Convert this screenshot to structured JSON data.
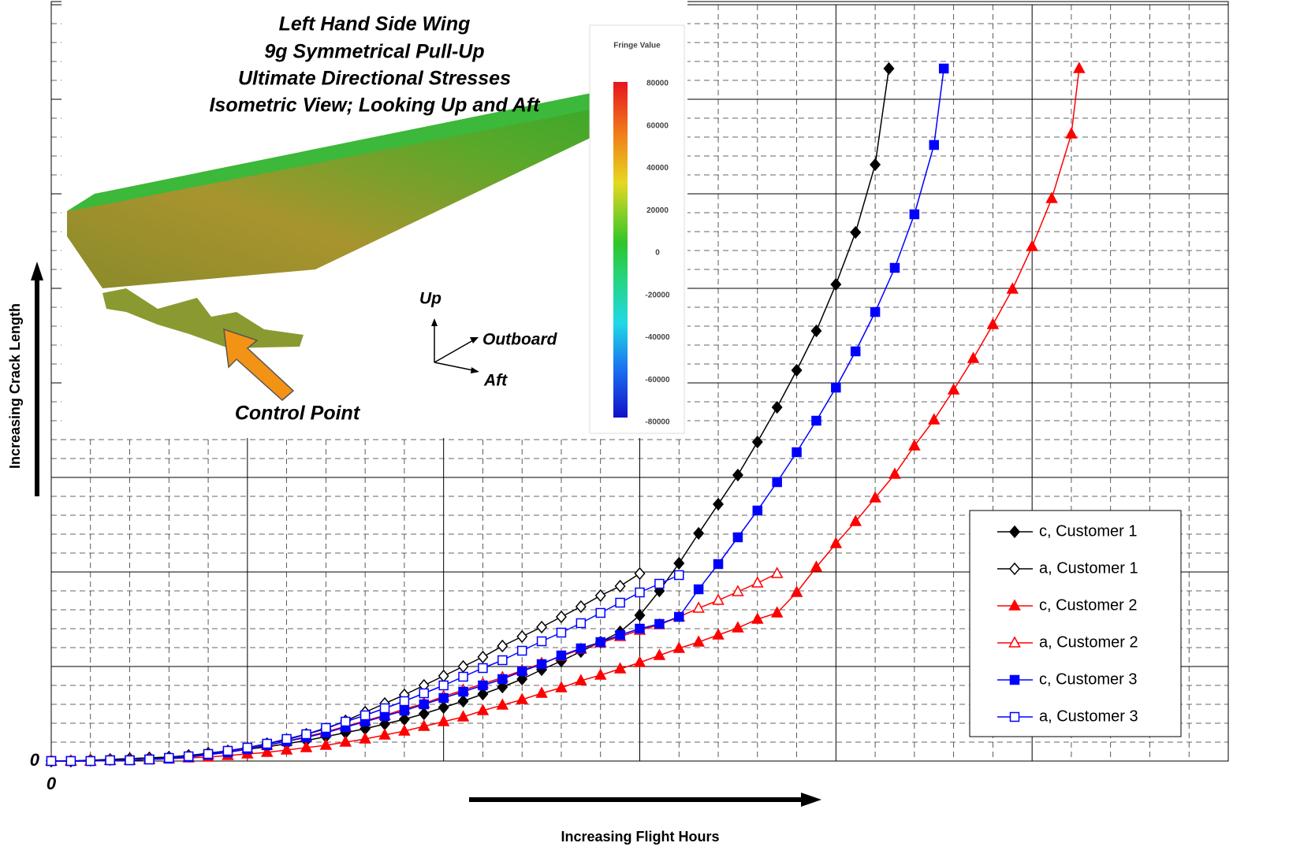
{
  "chart_data": {
    "type": "line",
    "x_axis_label": "Increasing Flight Hours",
    "y_axis_label": "Increasing Crack Length",
    "xlim": [
      0,
      30
    ],
    "ylim": [
      0,
      960
    ],
    "xticks": [
      0
    ],
    "yticks": [
      0
    ],
    "xgrid_major": 5,
    "xgrid_minor": 1,
    "ygrid_major": 120,
    "ygrid_minor": 24,
    "legend": "lower right",
    "series": [
      {
        "name": "c, Customer 1",
        "color": "#000000",
        "marker": "diamond",
        "filled": true,
        "x": [
          0,
          0.5,
          1,
          1.5,
          2,
          2.5,
          3,
          3.5,
          4,
          4.5,
          5,
          5.5,
          6,
          6.5,
          7,
          7.5,
          8,
          8.5,
          9,
          9.5,
          10,
          10.5,
          11,
          11.5,
          12,
          12.5,
          13,
          13.5,
          14,
          14.5,
          15,
          15.5,
          16,
          16.5,
          17,
          17.5,
          18,
          18.5,
          19,
          19.5,
          20,
          20.5,
          21,
          21.35
        ],
        "values": [
          0,
          0,
          1,
          2,
          3,
          4,
          5,
          7,
          9,
          12,
          15,
          18,
          22,
          26,
          31,
          36,
          41,
          47,
          53,
          60,
          68,
          76,
          85,
          94,
          104,
          116,
          127,
          139,
          151,
          164,
          185,
          216,
          251,
          289,
          326,
          363,
          405,
          449,
          496,
          546,
          605,
          671,
          757,
          879
        ]
      },
      {
        "name": "a, Customer 1",
        "color": "#000000",
        "marker": "diamond",
        "filled": false,
        "x": [
          0,
          0.5,
          1,
          1.5,
          2,
          2.5,
          3,
          3.5,
          4,
          4.5,
          5,
          5.5,
          6,
          6.5,
          7,
          7.5,
          8,
          8.5,
          9,
          9.5,
          10,
          10.5,
          11,
          11.5,
          12,
          12.5,
          13,
          13.5,
          14,
          14.5,
          15
        ],
        "values": [
          0,
          0,
          1,
          2,
          3,
          4,
          5,
          7,
          10,
          13,
          17,
          22,
          27,
          34,
          41,
          51,
          62,
          73,
          84,
          96,
          108,
          120,
          132,
          146,
          158,
          170,
          183,
          196,
          210,
          222,
          238
        ]
      },
      {
        "name": "c, Customer 2",
        "color": "#ff0000",
        "marker": "triangle",
        "filled": true,
        "x": [
          0,
          0.5,
          1,
          1.5,
          2,
          2.5,
          3,
          3.5,
          4,
          4.5,
          5,
          5.5,
          6,
          6.5,
          7,
          7.5,
          8,
          8.5,
          9,
          9.5,
          10,
          10.5,
          11,
          11.5,
          12,
          12.5,
          13,
          13.5,
          14,
          14.5,
          15,
          15.5,
          16,
          16.5,
          17,
          17.5,
          18,
          18.5,
          19,
          19.5,
          20,
          20.5,
          21,
          21.5,
          22,
          22.5,
          23,
          23.5,
          24,
          24.5,
          25,
          25.5,
          26,
          26.2
        ],
        "values": [
          0,
          0,
          0,
          1,
          1,
          2,
          3,
          4,
          5,
          7,
          9,
          11,
          14,
          17,
          20,
          24,
          28,
          33,
          38,
          44,
          50,
          56,
          64,
          71,
          78,
          86,
          93,
          102,
          109,
          117,
          125,
          134,
          143,
          151,
          160,
          169,
          180,
          188,
          214,
          246,
          276,
          304,
          334,
          364,
          400,
          433,
          471,
          511,
          554,
          599,
          653,
          714,
          796,
          879
        ]
      },
      {
        "name": "a, Customer 2",
        "color": "#ff0000",
        "marker": "triangle",
        "filled": false,
        "x": [
          0,
          0.5,
          1,
          1.5,
          2,
          2.5,
          3,
          3.5,
          4,
          4.5,
          5,
          5.5,
          6,
          6.5,
          7,
          7.5,
          8,
          8.5,
          9,
          9.5,
          10,
          10.5,
          11,
          11.5,
          12,
          12.5,
          13,
          13.5,
          14,
          14.5,
          15,
          15.5,
          16,
          16.5,
          17,
          17.5,
          18,
          18.5
        ],
        "values": [
          0,
          0,
          0,
          1,
          1,
          2,
          3,
          5,
          8,
          12,
          16,
          20,
          25,
          31,
          37,
          44,
          51,
          58,
          66,
          73,
          82,
          90,
          98,
          106,
          115,
          124,
          133,
          142,
          150,
          158,
          166,
          173,
          183,
          194,
          204,
          215,
          226,
          238
        ]
      },
      {
        "name": "c, Customer 3",
        "color": "#0000ff",
        "marker": "square",
        "filled": true,
        "x": [
          0,
          0.5,
          1,
          1.5,
          2,
          2.5,
          3,
          3.5,
          4,
          4.5,
          5,
          5.5,
          6,
          6.5,
          7,
          7.5,
          8,
          8.5,
          9,
          9.5,
          10,
          10.5,
          11,
          11.5,
          12,
          12.5,
          13,
          13.5,
          14,
          14.5,
          15,
          15.5,
          16,
          16.5,
          17,
          17.5,
          18,
          18.5,
          19,
          19.5,
          20,
          20.5,
          21,
          21.5,
          22,
          22.5,
          22.75
        ],
        "values": [
          0,
          0,
          0,
          1,
          1,
          2,
          3,
          5,
          8,
          11,
          15,
          20,
          25,
          30,
          36,
          43,
          50,
          57,
          64,
          72,
          80,
          88,
          96,
          104,
          114,
          123,
          134,
          143,
          151,
          160,
          168,
          174,
          183,
          218,
          250,
          284,
          318,
          354,
          392,
          432,
          474,
          520,
          570,
          626,
          694,
          782,
          879
        ]
      },
      {
        "name": "a, Customer 3",
        "color": "#0000ff",
        "marker": "square",
        "filled": false,
        "x": [
          0,
          0.5,
          1,
          1.5,
          2,
          2.5,
          3,
          3.5,
          4,
          4.5,
          5,
          5.5,
          6,
          6.5,
          7,
          7.5,
          8,
          8.5,
          9,
          9.5,
          10,
          10.5,
          11,
          11.5,
          12,
          12.5,
          13,
          13.5,
          14,
          14.5,
          15,
          15.5,
          16
        ],
        "values": [
          0,
          0,
          0,
          1,
          1,
          2,
          4,
          6,
          9,
          13,
          17,
          22,
          28,
          34,
          42,
          50,
          58,
          67,
          76,
          86,
          96,
          107,
          118,
          128,
          140,
          152,
          163,
          175,
          188,
          201,
          214,
          225,
          236
        ]
      }
    ],
    "inset": {
      "title_lines": [
        "Left Hand Side Wing",
        "9g Symmetrical Pull-Up",
        "Ultimate Directional Stresses",
        "Isometric View; Looking Up and Aft"
      ],
      "axis_up": "Up",
      "axis_outboard": "Outboard",
      "axis_aft": "Aft",
      "callout": "Control Point",
      "colorbar": {
        "title": "Fringe Value",
        "lim": [
          -80000,
          80000
        ],
        "ticks": [
          80000,
          60000,
          40000,
          20000,
          0,
          -20000,
          -40000,
          -60000,
          -80000
        ]
      }
    }
  }
}
